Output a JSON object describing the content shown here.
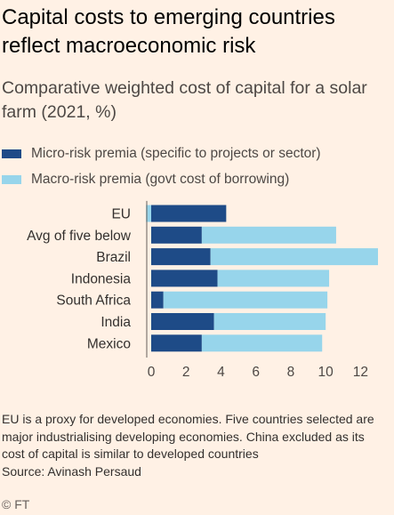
{
  "title": "Capital costs to emerging countries reflect macroeconomic risk",
  "subtitle": "Comparative weighted cost of capital for a solar farm (2021, %)",
  "footnote": "EU is a proxy for developed economies. Five countries selected are major industrialising developing economies. China excluded as its cost of capital is similar to developed countries",
  "source": "Source: Avinash Persaud",
  "credit": "© FT",
  "colors": {
    "background": "#fff1e5",
    "micro": "#1e4b87",
    "macro": "#97d5eb",
    "axis": "#66605c",
    "grid": "#e0d5cb"
  },
  "chart_data": {
    "type": "bar",
    "orientation": "horizontal",
    "stacked": true,
    "categories": [
      "EU",
      "Avg of five below",
      "Brazil",
      "Indonesia",
      "South Africa",
      "India",
      "Mexico"
    ],
    "series": [
      {
        "name": "Micro-risk premia (specific to projects or sector)",
        "color": "#1e4b87",
        "values": [
          4.3,
          2.9,
          3.4,
          3.8,
          0.7,
          3.6,
          2.9
        ]
      },
      {
        "name": "Macro-risk premia (govt cost of borrowing)",
        "color": "#97d5eb",
        "values": [
          0.0,
          7.7,
          9.6,
          6.4,
          9.4,
          6.4,
          6.9
        ]
      }
    ],
    "base_values": [
      -0.3,
      0,
      0,
      0,
      0,
      0,
      0
    ],
    "xlim": [
      0,
      13
    ],
    "xticks": [
      0,
      2,
      4,
      6,
      8,
      10,
      12
    ],
    "xlabel": "",
    "ylabel": "",
    "grid": false,
    "legend_position": "top-left"
  }
}
